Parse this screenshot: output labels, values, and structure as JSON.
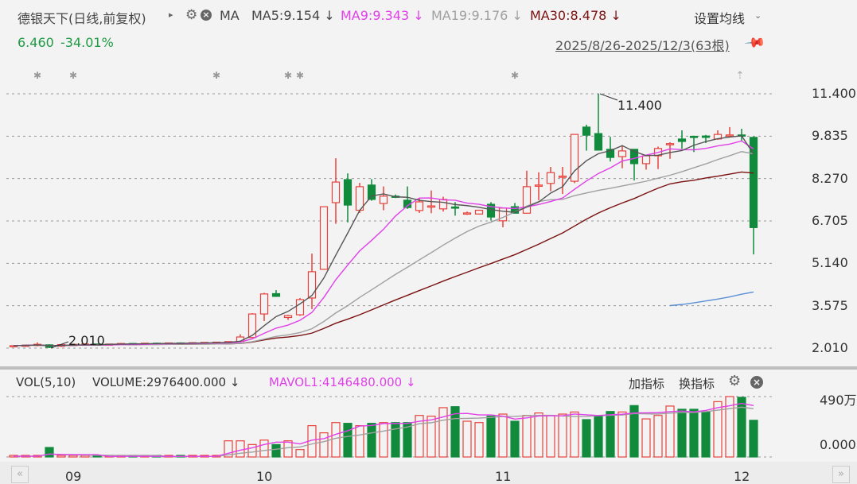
{
  "header": {
    "stock_title": "德银天下(日线,前复权)",
    "expand_arrow": "▸",
    "ma_label": "MA",
    "ma5": "MA5:9.154 ↓",
    "ma9": "MA9:9.343 ↓",
    "ma19": "MA19:9.176 ↓",
    "ma30": "MA30:8.478 ↓",
    "settings_ma": "设置均线",
    "price": "6.460",
    "change": "-34.01%",
    "range": "2025/8/26-2025/12/3(63根)"
  },
  "volume_header": {
    "vol_label": "VOL(5,10)",
    "volume": "VOLUME:2976400.000 ↓",
    "mavol": "MAVOL1:4146480.000 ↓",
    "add_indicator": "加指标",
    "switch_indicator": "换指标"
  },
  "colors": {
    "up": "#e8413c",
    "down": "#118a3c",
    "ma5": "#555555",
    "ma9": "#e040e8",
    "ma19": "#a0a0a0",
    "ma30": "#7a1010",
    "extra": "#5b8fd6"
  },
  "icons": [
    "gear-icon",
    "close-icon",
    "pin-icon",
    "chevron-down-icon",
    "scroll-left-icon",
    "scroll-right-icon"
  ],
  "chart_data": {
    "type": "candlestick",
    "title": "德银天下(日线,前复权)",
    "y_ticks": [
      "11.400",
      "9.835",
      "8.270",
      "6.705",
      "5.140",
      "3.575",
      "2.010"
    ],
    "ylim": [
      2.01,
      11.4
    ],
    "x_ticks": [
      {
        "index": 5,
        "label": "09"
      },
      {
        "index": 21,
        "label": "10"
      },
      {
        "index": 41,
        "label": "11"
      },
      {
        "index": 61,
        "label": "12"
      }
    ],
    "annotations": [
      {
        "index": 49,
        "value": 11.4,
        "label": "11.400"
      },
      {
        "index": 3,
        "value": 2.01,
        "label": "2.010"
      }
    ],
    "event_marker_indices": [
      2,
      5,
      17,
      23,
      24,
      42
    ],
    "ohlc": [
      [
        2.08,
        2.12,
        2.05,
        2.1
      ],
      [
        2.1,
        2.14,
        2.06,
        2.12
      ],
      [
        2.12,
        2.22,
        2.08,
        2.15
      ],
      [
        2.13,
        2.15,
        2.01,
        2.04
      ],
      [
        2.08,
        2.16,
        2.05,
        2.14
      ],
      [
        2.14,
        2.17,
        2.12,
        2.15
      ],
      [
        2.15,
        2.18,
        2.13,
        2.16
      ],
      [
        2.16,
        2.18,
        2.14,
        2.15
      ],
      [
        2.15,
        2.17,
        2.13,
        2.16
      ],
      [
        2.16,
        2.19,
        2.14,
        2.18
      ],
      [
        2.18,
        2.2,
        2.15,
        2.17
      ],
      [
        2.17,
        2.2,
        2.15,
        2.19
      ],
      [
        2.19,
        2.21,
        2.17,
        2.18
      ],
      [
        2.18,
        2.21,
        2.16,
        2.2
      ],
      [
        2.2,
        2.22,
        2.18,
        2.19
      ],
      [
        2.19,
        2.22,
        2.17,
        2.21
      ],
      [
        2.21,
        2.23,
        2.19,
        2.22
      ],
      [
        2.2,
        2.24,
        2.18,
        2.23
      ],
      [
        2.22,
        2.26,
        2.2,
        2.25
      ],
      [
        2.25,
        2.52,
        2.22,
        2.42
      ],
      [
        2.4,
        3.3,
        2.38,
        3.27
      ],
      [
        3.27,
        4.05,
        3.01,
        4.01
      ],
      [
        4.02,
        4.15,
        3.9,
        3.92
      ],
      [
        3.14,
        3.24,
        3.05,
        3.21
      ],
      [
        3.24,
        3.86,
        3.2,
        3.8
      ],
      [
        3.86,
        5.5,
        3.45,
        4.83
      ],
      [
        4.92,
        7.23,
        4.9,
        7.23
      ],
      [
        7.38,
        9.02,
        6.6,
        8.14
      ],
      [
        8.23,
        8.46,
        6.65,
        7.29
      ],
      [
        7.1,
        8.11,
        7.0,
        7.97
      ],
      [
        8.03,
        8.25,
        7.45,
        7.5
      ],
      [
        7.35,
        7.98,
        7.1,
        7.62
      ],
      [
        7.62,
        7.68,
        7.55,
        7.6
      ],
      [
        7.47,
        7.98,
        7.15,
        7.2
      ],
      [
        7.09,
        7.55,
        7.0,
        7.41
      ],
      [
        7.24,
        7.83,
        6.99,
        7.26
      ],
      [
        7.15,
        7.6,
        7.05,
        7.5
      ],
      [
        7.22,
        7.4,
        6.9,
        7.18
      ],
      [
        6.99,
        7.05,
        6.93,
        7.0
      ],
      [
        6.96,
        7.1,
        6.94,
        7.1
      ],
      [
        7.32,
        7.4,
        6.72,
        6.85
      ],
      [
        6.71,
        7.2,
        6.47,
        7.18
      ],
      [
        7.23,
        7.37,
        6.99,
        6.99
      ],
      [
        6.99,
        8.56,
        6.99,
        7.97
      ],
      [
        8.0,
        8.5,
        7.47,
        8.03
      ],
      [
        8.09,
        8.7,
        7.8,
        8.49
      ],
      [
        8.33,
        8.7,
        7.7,
        8.36
      ],
      [
        8.17,
        9.9,
        8.1,
        9.9
      ],
      [
        10.17,
        10.26,
        9.3,
        9.87
      ],
      [
        9.93,
        11.4,
        9.32,
        9.32
      ],
      [
        9.35,
        9.81,
        8.9,
        9.05
      ],
      [
        9.08,
        9.5,
        8.65,
        9.29
      ],
      [
        9.35,
        9.35,
        8.2,
        8.82
      ],
      [
        8.82,
        9.15,
        8.6,
        9.11
      ],
      [
        9.11,
        9.45,
        8.62,
        9.38
      ],
      [
        9.53,
        9.61,
        9.0,
        9.56
      ],
      [
        9.73,
        10.05,
        9.37,
        9.64
      ],
      [
        9.83,
        9.85,
        9.25,
        9.81
      ],
      [
        9.84,
        9.88,
        9.58,
        9.79
      ],
      [
        9.73,
        10.05,
        9.7,
        9.9
      ],
      [
        9.86,
        10.17,
        9.8,
        9.88
      ],
      [
        9.88,
        10.11,
        9.64,
        9.86
      ],
      [
        9.79,
        9.82,
        5.47,
        6.46
      ]
    ],
    "ma_periods": {
      "ma5": 5,
      "ma9": 9,
      "ma19": 19,
      "ma30": 30
    },
    "extra_line": {
      "start_index": 55,
      "values": [
        3.58,
        3.62,
        3.68,
        3.75,
        3.82,
        3.9,
        4.0,
        4.08
      ]
    },
    "volume_unit": "万",
    "volume_ticks": [
      "490万",
      "0.000"
    ],
    "volume_max": 490,
    "volume": [
      6,
      6,
      6,
      77,
      3,
      5,
      5,
      5,
      5,
      5,
      5,
      5,
      5,
      5,
      5,
      5,
      5,
      5,
      131,
      131,
      101,
      137,
      101,
      131,
      60,
      254,
      196,
      279,
      273,
      254,
      273,
      279,
      279,
      279,
      337,
      331,
      400,
      408,
      290,
      279,
      331,
      348,
      290,
      337,
      357,
      337,
      348,
      365,
      303,
      331,
      369,
      365,
      417,
      309,
      337,
      413,
      387,
      387,
      365,
      449,
      490,
      484,
      297.64
    ]
  }
}
